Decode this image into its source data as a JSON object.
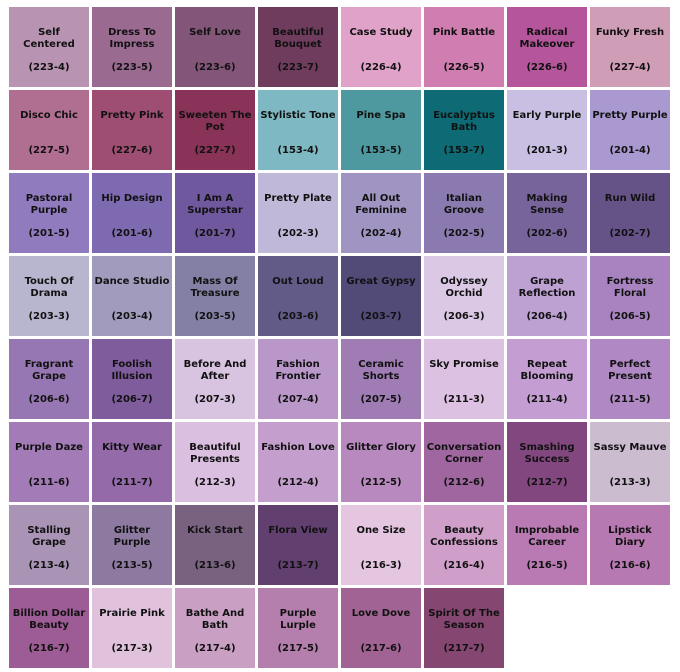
{
  "swatches": [
    {
      "name": "Self Centered",
      "code": "(223-4)",
      "color": "#b894b2"
    },
    {
      "name": "Dress To Impress",
      "code": "(223-5)",
      "color": "#9a6a91"
    },
    {
      "name": "Self Love",
      "code": "(223-6)",
      "color": "#835679"
    },
    {
      "name": "Beautiful Bouquet",
      "code": "(223-7)",
      "color": "#703c5e"
    },
    {
      "name": "Case Study",
      "code": "(226-4)",
      "color": "#e0a2c8"
    },
    {
      "name": "Pink Battle",
      "code": "(226-5)",
      "color": "#d07db1"
    },
    {
      "name": "Radical Makeover",
      "code": "(226-6)",
      "color": "#b5559b"
    },
    {
      "name": "Funky Fresh",
      "code": "(227-4)",
      "color": "#d09db6"
    },
    {
      "name": "Disco Chic",
      "code": "(227-5)",
      "color": "#b06e90"
    },
    {
      "name": "Pretty Pink",
      "code": "(227-6)",
      "color": "#9e4e73"
    },
    {
      "name": "Sweeten The Pot",
      "code": "(227-7)",
      "color": "#8a3358"
    },
    {
      "name": "Stylistic Tone",
      "code": "(153-4)",
      "color": "#7eb8c3"
    },
    {
      "name": "Pine Spa",
      "code": "(153-5)",
      "color": "#4e989f"
    },
    {
      "name": "Eucalyptus Bath",
      "code": "(153-7)",
      "color": "#0e6a74"
    },
    {
      "name": "Early Purple",
      "code": "(201-3)",
      "color": "#c9bfe2"
    },
    {
      "name": "Pretty Purple",
      "code": "(201-4)",
      "color": "#aa98d0"
    },
    {
      "name": "Pastoral Purple",
      "code": "(201-5)",
      "color": "#907bbf"
    },
    {
      "name": "Hip Design",
      "code": "(201-6)",
      "color": "#7e6ab0"
    },
    {
      "name": "I Am A Superstar",
      "code": "(201-7)",
      "color": "#6f589e"
    },
    {
      "name": "Pretty Plate",
      "code": "(202-3)",
      "color": "#c0b8d8"
    },
    {
      "name": "All Out Feminine",
      "code": "(202-4)",
      "color": "#a094c3"
    },
    {
      "name": "Italian Groove",
      "code": "(202-5)",
      "color": "#8a7aaf"
    },
    {
      "name": "Making Sense",
      "code": "(202-6)",
      "color": "#76649b"
    },
    {
      "name": "Run Wild",
      "code": "(202-7)",
      "color": "#655388"
    },
    {
      "name": "Touch Of Drama",
      "code": "(203-3)",
      "color": "#b8b5cf"
    },
    {
      "name": "Dance Studio",
      "code": "(203-4)",
      "color": "#a19cbd"
    },
    {
      "name": "Mass Of Treasure",
      "code": "(203-5)",
      "color": "#8480a5"
    },
    {
      "name": "Out Loud",
      "code": "(203-6)",
      "color": "#625a87"
    },
    {
      "name": "Great Gypsy",
      "code": "(203-7)",
      "color": "#524a77"
    },
    {
      "name": "Odyssey Orchid",
      "code": "(206-3)",
      "color": "#dac8e5"
    },
    {
      "name": "Grape Reflection",
      "code": "(206-4)",
      "color": "#bea1d3"
    },
    {
      "name": "Fortress Floral",
      "code": "(206-5)",
      "color": "#a883bf"
    },
    {
      "name": "Fragrant Grape",
      "code": "(206-6)",
      "color": "#9677b3"
    },
    {
      "name": "Foolish Illusion",
      "code": "(206-7)",
      "color": "#7f5c9c"
    },
    {
      "name": "Before And After",
      "code": "(207-3)",
      "color": "#d8c3e0"
    },
    {
      "name": "Fashion Frontier",
      "code": "(207-4)",
      "color": "#b997c9"
    },
    {
      "name": "Ceramic Shorts",
      "code": "(207-5)",
      "color": "#a07cb4"
    },
    {
      "name": "Sky Promise",
      "code": "(211-3)",
      "color": "#dcc1e2"
    },
    {
      "name": "Repeat Blooming",
      "code": "(211-4)",
      "color": "#c49ed2"
    },
    {
      "name": "Perfect Present",
      "code": "(211-5)",
      "color": "#b088c3"
    },
    {
      "name": "Purple Daze",
      "code": "(211-6)",
      "color": "#a27bb7"
    },
    {
      "name": "Kitty Wear",
      "code": "(211-7)",
      "color": "#946aa9"
    },
    {
      "name": "Beautiful Presents",
      "code": "(212-3)",
      "color": "#dbbfe0"
    },
    {
      "name": "Fashion Love",
      "code": "(212-4)",
      "color": "#c49ecc"
    },
    {
      "name": "Glitter Glory",
      "code": "(212-5)",
      "color": "#b889bf"
    },
    {
      "name": "Conversation Corner",
      "code": "(212-6)",
      "color": "#9f669f"
    },
    {
      "name": "Smashing Success",
      "code": "(212-7)",
      "color": "#82477f"
    },
    {
      "name": "Sassy Mauve",
      "code": "(213-3)",
      "color": "#cbbcd0"
    },
    {
      "name": "Stalling Grape",
      "code": "(213-4)",
      "color": "#a994b5"
    },
    {
      "name": "Glitter Purple",
      "code": "(213-5)",
      "color": "#8e7aa1"
    },
    {
      "name": "Kick Start",
      "code": "(213-6)",
      "color": "#78627f"
    },
    {
      "name": "Flora View",
      "code": "(213-7)",
      "color": "#613f6e"
    },
    {
      "name": "One Size",
      "code": "(216-3)",
      "color": "#e4c6e1"
    },
    {
      "name": "Beauty Confessions",
      "code": "(216-4)",
      "color": "#cf9ec9"
    },
    {
      "name": "Improbable Career",
      "code": "(216-5)",
      "color": "#b979b3"
    },
    {
      "name": "Lipstick Diary",
      "code": "(216-6)",
      "color": "#b779b1"
    },
    {
      "name": "Billion Dollar Beauty",
      "code": "(216-7)",
      "color": "#9d5c96"
    },
    {
      "name": "Prairie Pink",
      "code": "(217-3)",
      "color": "#e1c2dd"
    },
    {
      "name": "Bathe And Bath",
      "code": "(217-4)",
      "color": "#c9a0c4"
    },
    {
      "name": "Purple Lurple",
      "code": "(217-5)",
      "color": "#b47fad"
    },
    {
      "name": "Love Dove",
      "code": "(217-6)",
      "color": "#a06393"
    },
    {
      "name": "Spirit Of The Season",
      "code": "(217-7)",
      "color": "#854671"
    }
  ]
}
